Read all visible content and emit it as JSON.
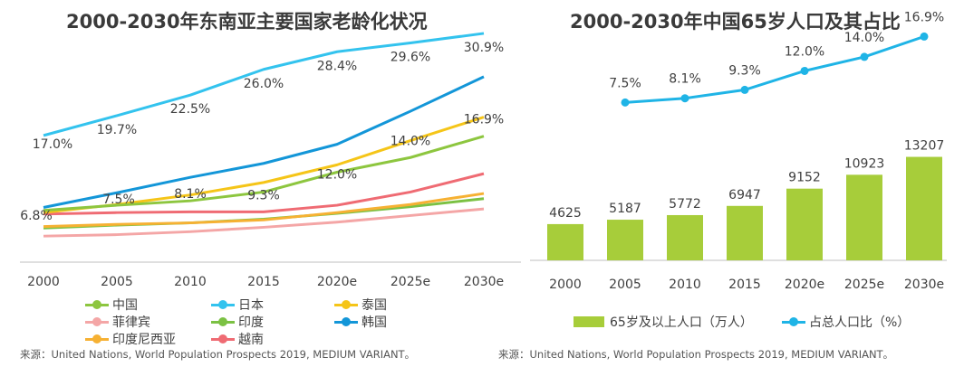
{
  "chart_data": [
    {
      "type": "line",
      "title": "2000-2030年东南亚主要国家老龄化状况",
      "categories": [
        "2000",
        "2005",
        "2010",
        "2015",
        "2020e",
        "2025e",
        "2030e"
      ],
      "ylim": [
        0,
        32
      ],
      "grid": false,
      "legend_position": "bottom",
      "series": [
        {
          "name": "中国",
          "color": "#8dc63f",
          "values": [
            6.8,
            7.5,
            8.1,
            9.3,
            12.0,
            14.0,
            16.9
          ]
        },
        {
          "name": "日本",
          "color": "#33c3ee",
          "values": [
            17.0,
            19.7,
            22.5,
            26.0,
            28.4,
            29.6,
            30.9
          ]
        },
        {
          "name": "泰国",
          "color": "#f5c518",
          "values": [
            6.5,
            7.6,
            8.9,
            10.6,
            13.0,
            16.3,
            19.5
          ]
        },
        {
          "name": "菲律宾",
          "color": "#f4a6a6",
          "values": [
            3.3,
            3.5,
            3.9,
            4.5,
            5.2,
            6.1,
            7.0
          ]
        },
        {
          "name": "印度",
          "color": "#7bc143",
          "values": [
            4.4,
            4.8,
            5.1,
            5.6,
            6.4,
            7.3,
            8.4
          ]
        },
        {
          "name": "韩国",
          "color": "#1396d8",
          "values": [
            7.2,
            9.2,
            11.3,
            13.2,
            15.8,
            20.3,
            25.0
          ]
        },
        {
          "name": "印度尼西亚",
          "color": "#f6b133",
          "values": [
            4.6,
            4.9,
            5.1,
            5.5,
            6.5,
            7.6,
            9.1
          ]
        },
        {
          "name": "越南",
          "color": "#ef6b73",
          "values": [
            6.3,
            6.5,
            6.6,
            6.6,
            7.5,
            9.3,
            11.8
          ]
        }
      ],
      "annotations": {
        "日本": [
          "17.0%",
          "19.7%",
          "22.5%",
          "26.0%",
          "28.4%",
          "29.6%",
          "30.9%"
        ],
        "中国": [
          "6.8%",
          "7.5%",
          "8.1%",
          "9.3%",
          "12.0%",
          "14.0%",
          "16.9%"
        ]
      },
      "source": "来源：United Nations, World  Population Prospects 2019, MEDIUM VARIANT。"
    },
    {
      "type": "bar+line",
      "title": "2000-2030年中国65岁人口及其占比",
      "categories": [
        "2000",
        "2005",
        "2010",
        "2015",
        "2020e",
        "2025e",
        "2030e"
      ],
      "bar_series": {
        "name": "65岁及以上人口（万人）",
        "color": "#a7cd3a",
        "values": [
          4625,
          5187,
          5772,
          6947,
          9152,
          10923,
          13207
        ]
      },
      "bar_ylim": [
        0,
        30000
      ],
      "line_series": {
        "name": "占总人口比（%）",
        "color": "#1fb4e6",
        "values": [
          null,
          7.5,
          8.1,
          9.3,
          12.0,
          14.0,
          16.9
        ],
        "labels": [
          "",
          "7.5%",
          "8.1%",
          "9.3%",
          "12.0%",
          "14.0%",
          "16.9%"
        ]
      },
      "line_ylim": [
        -15,
        18.5
      ],
      "legend_position": "bottom",
      "source": "来源：United Nations, World  Population Prospects 2019, MEDIUM VARIANT。"
    }
  ]
}
